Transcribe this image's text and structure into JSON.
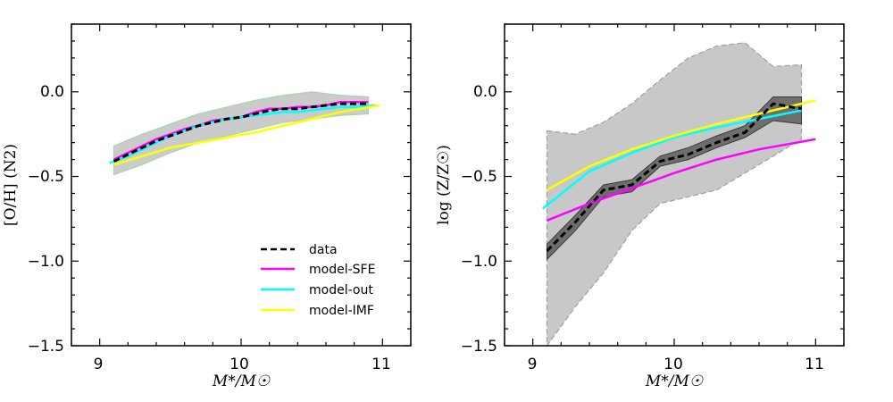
{
  "colors": {
    "data": "#000000",
    "model-SFE": "#ff00ff",
    "model-out": "#00ffff",
    "model-IMF": "#ffff00",
    "band_gas": "#c8c8c8",
    "band_gas_edge": "#a0a0a0",
    "band_stars": "#c8c8c8",
    "band_stars_edge": "#a6d6a6",
    "band_data": "#6e6e6e"
  },
  "chart_data": [
    {
      "type": "line",
      "name": "panel-left",
      "xlabel": "M*/M☉",
      "ylabel": "[O/H] (N2)",
      "xlim": [
        8.8,
        11.2
      ],
      "ylim": [
        -1.5,
        0.4
      ],
      "xticks": [
        9,
        10,
        11
      ],
      "xtick_labels": [
        "9",
        "10",
        "11"
      ],
      "yticks": [
        -1.5,
        -1.0,
        -0.5,
        0.0
      ],
      "ytick_labels": [
        "−1.5",
        "−1.0",
        "−0.5",
        "0.0"
      ],
      "legend": {
        "location": "lower-right",
        "entries": [
          "data",
          "model-SFE",
          "model-out",
          "model-IMF"
        ]
      },
      "band": {
        "x": [
          9.1,
          9.3,
          9.5,
          9.7,
          9.9,
          10.1,
          10.3,
          10.5,
          10.7,
          10.9
        ],
        "upper": [
          -0.32,
          -0.25,
          -0.19,
          -0.13,
          -0.09,
          -0.05,
          -0.02,
          0.0,
          -0.02,
          -0.03
        ],
        "lower": [
          -0.49,
          -0.43,
          -0.36,
          -0.3,
          -0.26,
          -0.22,
          -0.18,
          -0.16,
          -0.14,
          -0.13
        ]
      },
      "series": [
        {
          "name": "data",
          "style": "dashed",
          "x": [
            9.1,
            9.2,
            9.3,
            9.4,
            9.5,
            9.6,
            9.7,
            9.8,
            9.9,
            10.0,
            10.1,
            10.2,
            10.3,
            10.4,
            10.5,
            10.6,
            10.7,
            10.8,
            10.9
          ],
          "y": [
            -0.41,
            -0.37,
            -0.33,
            -0.29,
            -0.26,
            -0.23,
            -0.2,
            -0.18,
            -0.16,
            -0.15,
            -0.13,
            -0.11,
            -0.1,
            -0.1,
            -0.09,
            -0.08,
            -0.07,
            -0.07,
            -0.07
          ]
        },
        {
          "name": "model-SFE",
          "x": [
            9.1,
            9.2,
            9.3,
            9.4,
            9.5,
            9.6,
            9.7,
            9.8,
            9.9,
            10.0,
            10.1,
            10.2,
            10.3,
            10.4,
            10.5,
            10.6,
            10.7,
            10.8,
            10.9
          ],
          "y": [
            -0.4,
            -0.36,
            -0.32,
            -0.28,
            -0.25,
            -0.22,
            -0.2,
            -0.17,
            -0.16,
            -0.15,
            -0.12,
            -0.1,
            -0.1,
            -0.09,
            -0.09,
            -0.08,
            -0.06,
            -0.06,
            -0.06
          ]
        },
        {
          "name": "model-out",
          "x": [
            9.07,
            9.2,
            9.3,
            9.4,
            9.5,
            9.6,
            9.7,
            9.8,
            9.9,
            10.0,
            10.1,
            10.2,
            10.3,
            10.4,
            10.5,
            10.6,
            10.7,
            10.8,
            10.95
          ],
          "y": [
            -0.42,
            -0.38,
            -0.34,
            -0.3,
            -0.26,
            -0.23,
            -0.2,
            -0.18,
            -0.16,
            -0.15,
            -0.14,
            -0.13,
            -0.12,
            -0.12,
            -0.11,
            -0.1,
            -0.09,
            -0.09,
            -0.08
          ]
        },
        {
          "name": "model-IMF",
          "x": [
            9.1,
            9.3,
            9.5,
            9.7,
            9.9,
            10.1,
            10.3,
            10.5,
            10.7,
            10.98
          ],
          "y": [
            -0.43,
            -0.38,
            -0.33,
            -0.3,
            -0.27,
            -0.24,
            -0.2,
            -0.16,
            -0.12,
            -0.08
          ]
        }
      ]
    },
    {
      "type": "line",
      "name": "panel-right",
      "xlabel": "M*/M☉",
      "ylabel": "log (Z/Z☉)",
      "xlim": [
        8.8,
        11.2
      ],
      "ylim": [
        -1.5,
        0.4
      ],
      "xticks": [
        9,
        10,
        11
      ],
      "xtick_labels": [
        "9",
        "10",
        "11"
      ],
      "yticks": [
        -1.5,
        -1.0,
        -0.5,
        0.0
      ],
      "ytick_labels": [
        "−1.5",
        "−1.0",
        "−0.5",
        "0.0"
      ],
      "band": {
        "x": [
          9.1,
          9.3,
          9.5,
          9.7,
          9.9,
          10.1,
          10.3,
          10.5,
          10.7,
          10.9
        ],
        "upper": [
          -0.23,
          -0.25,
          -0.18,
          -0.07,
          0.07,
          0.2,
          0.27,
          0.29,
          0.15,
          0.16
        ],
        "lower": [
          -1.5,
          -1.27,
          -1.07,
          -0.82,
          -0.66,
          -0.62,
          -0.58,
          -0.48,
          -0.38,
          -0.28
        ]
      },
      "data_band": {
        "x": [
          9.1,
          9.3,
          9.5,
          9.7,
          9.9,
          10.1,
          10.3,
          10.5,
          10.7,
          10.9
        ],
        "upper": [
          -0.9,
          -0.73,
          -0.55,
          -0.52,
          -0.38,
          -0.33,
          -0.26,
          -0.2,
          -0.03,
          -0.03
        ],
        "lower": [
          -0.99,
          -0.82,
          -0.62,
          -0.59,
          -0.44,
          -0.4,
          -0.33,
          -0.27,
          -0.17,
          -0.19
        ]
      },
      "series": [
        {
          "name": "data",
          "style": "dashed",
          "x": [
            9.1,
            9.3,
            9.5,
            9.7,
            9.9,
            10.1,
            10.3,
            10.5,
            10.7,
            10.9
          ],
          "y": [
            -0.94,
            -0.77,
            -0.58,
            -0.55,
            -0.41,
            -0.37,
            -0.3,
            -0.24,
            -0.07,
            -0.1
          ]
        },
        {
          "name": "model-SFE",
          "x": [
            9.1,
            9.4,
            9.7,
            10.0,
            10.3,
            10.6,
            11.0
          ],
          "y": [
            -0.76,
            -0.66,
            -0.57,
            -0.48,
            -0.4,
            -0.34,
            -0.28
          ]
        },
        {
          "name": "model-out",
          "x": [
            9.07,
            9.4,
            9.7,
            10.0,
            10.3,
            10.6,
            10.9
          ],
          "y": [
            -0.69,
            -0.47,
            -0.36,
            -0.27,
            -0.21,
            -0.16,
            -0.11
          ]
        },
        {
          "name": "model-IMF",
          "x": [
            9.1,
            9.4,
            9.7,
            10.0,
            10.3,
            10.6,
            11.0
          ],
          "y": [
            -0.58,
            -0.44,
            -0.34,
            -0.26,
            -0.19,
            -0.13,
            -0.05
          ]
        }
      ]
    }
  ]
}
